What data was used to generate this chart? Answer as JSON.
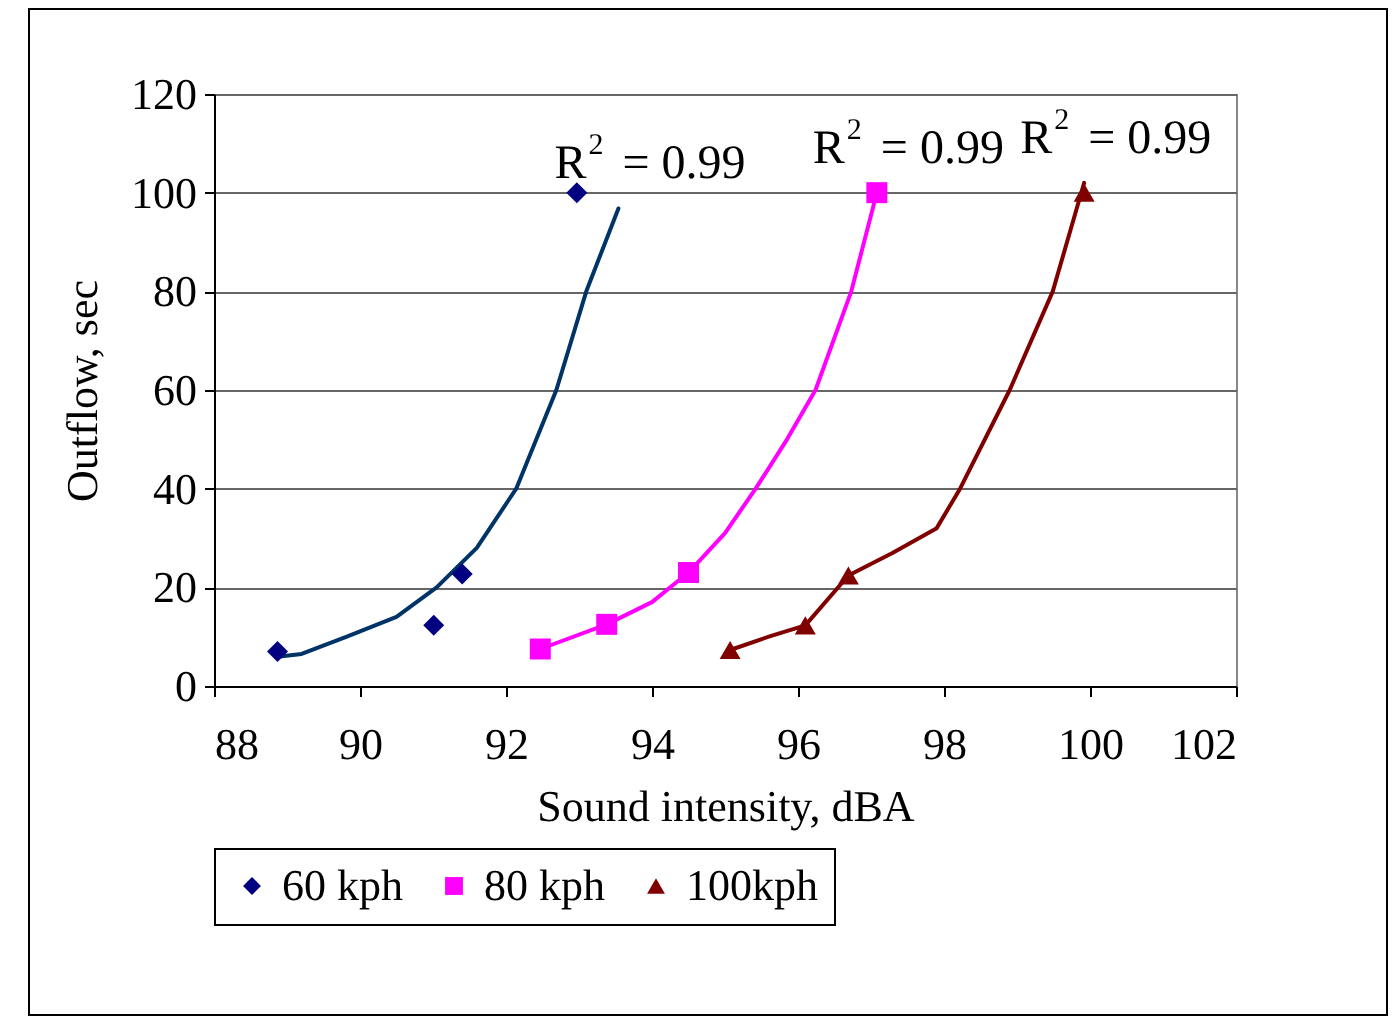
{
  "chart_data": {
    "type": "scatter",
    "xlabel": "Sound intensity, dBA",
    "ylabel": "Outflow, sec",
    "xlim": [
      88,
      102
    ],
    "xticks": [
      88,
      90,
      92,
      94,
      96,
      98,
      100,
      102
    ],
    "ylim": [
      0,
      120
    ],
    "yticks": [
      0,
      20,
      40,
      60,
      80,
      100,
      120
    ],
    "grid": "y",
    "legend": "bottom",
    "series": [
      {
        "name": "60 kph",
        "color": "#000080",
        "marker": "diamond",
        "x": [
          88.87,
          91.01,
          91.4,
          92.97
        ],
        "values": [
          7,
          12.3,
          22.7,
          100
        ]
      },
      {
        "name": "80 kph",
        "color": "#ff00ff",
        "marker": "square",
        "x": [
          92.47,
          93.38,
          94.5,
          97.08
        ],
        "values": [
          7.5,
          12.5,
          23,
          100
        ]
      },
      {
        "name": "100kph",
        "color": "#800000",
        "marker": "triangle",
        "x": [
          95.07,
          96.1,
          96.69,
          99.92
        ],
        "values": [
          7.3,
          12.3,
          22.4,
          100
        ]
      },
      {
        "type": "line",
        "color": "#003366",
        "x": [
          88.9,
          89.2,
          89.82,
          90.5,
          91.05,
          91.6,
          92.14,
          92.69,
          93.1,
          93.54
        ],
        "values": [
          6,
          6.5,
          10,
          14,
          20,
          28,
          40,
          60,
          80,
          96.8
        ]
      },
      {
        "type": "line",
        "color": "#ff00ff",
        "x": [
          92.47,
          93.38,
          94.0,
          94.5,
          95.0,
          95.42,
          95.85,
          96.24,
          96.73,
          97.08
        ],
        "values": [
          7.5,
          12.5,
          17,
          23,
          31,
          40,
          50,
          60,
          80,
          100
        ]
      },
      {
        "type": "line",
        "color": "#800000",
        "x": [
          95.07,
          95.6,
          96.1,
          96.69,
          97.3,
          97.9,
          98.22,
          98.9,
          99.49,
          99.92
        ],
        "values": [
          7.3,
          10,
          12.3,
          22.4,
          27,
          32,
          40,
          60,
          80,
          102
        ]
      }
    ],
    "annotations": [
      "R$^{2}$ = 0.99",
      "R$^{2}$ = 0.99",
      "R$^{2}$ = 0.99"
    ]
  }
}
